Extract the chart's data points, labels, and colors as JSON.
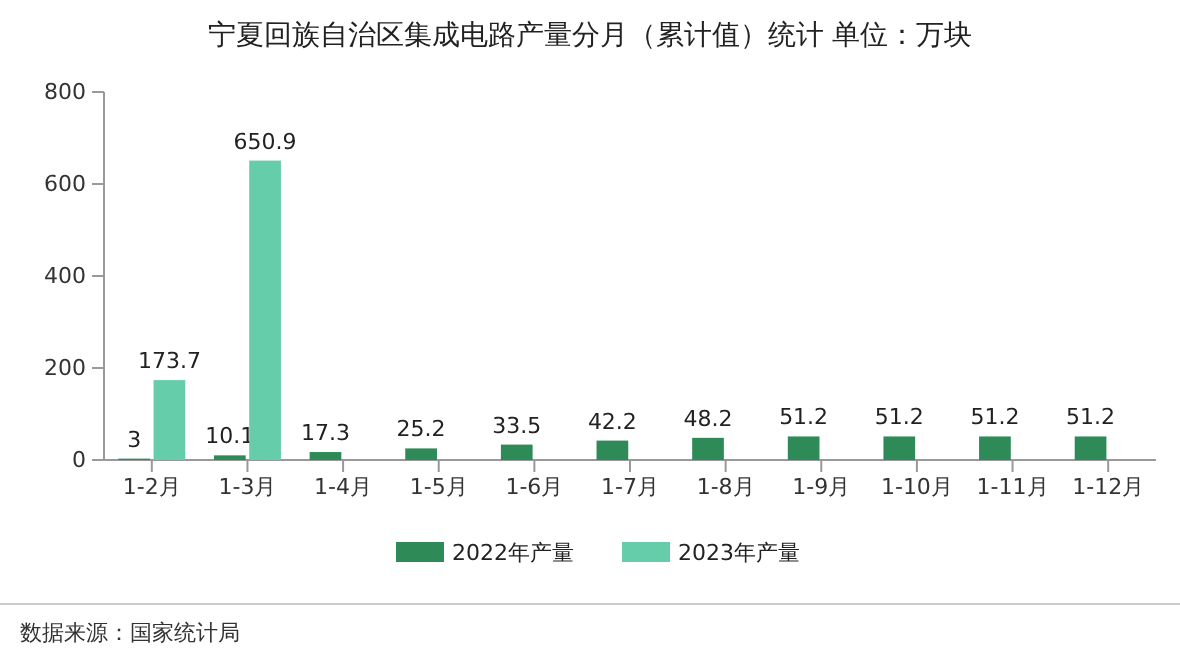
{
  "chart_data": {
    "type": "bar",
    "title": "宁夏回族自治区集成电路产量分月（累计值）统计  单位：万块",
    "categories": [
      "1-2月",
      "1-3月",
      "1-4月",
      "1-5月",
      "1-6月",
      "1-7月",
      "1-8月",
      "1-9月",
      "1-10月",
      "1-11月",
      "1-12月"
    ],
    "series": [
      {
        "name": "2022年产量",
        "color": "#2e8b57",
        "values": [
          3,
          10.1,
          17.3,
          25.2,
          33.5,
          42.2,
          48.2,
          51.2,
          51.2,
          51.2,
          51.2
        ]
      },
      {
        "name": "2023年产量",
        "color": "#66cdaa",
        "values": [
          173.7,
          650.9,
          null,
          null,
          null,
          null,
          null,
          null,
          null,
          null,
          null
        ]
      }
    ],
    "ylim": [
      0,
      800
    ],
    "yticks": [
      0,
      200,
      400,
      600,
      800
    ],
    "data_labels": true,
    "legend": "bottom",
    "annotations": [
      "数据来源：国家统计局"
    ]
  }
}
